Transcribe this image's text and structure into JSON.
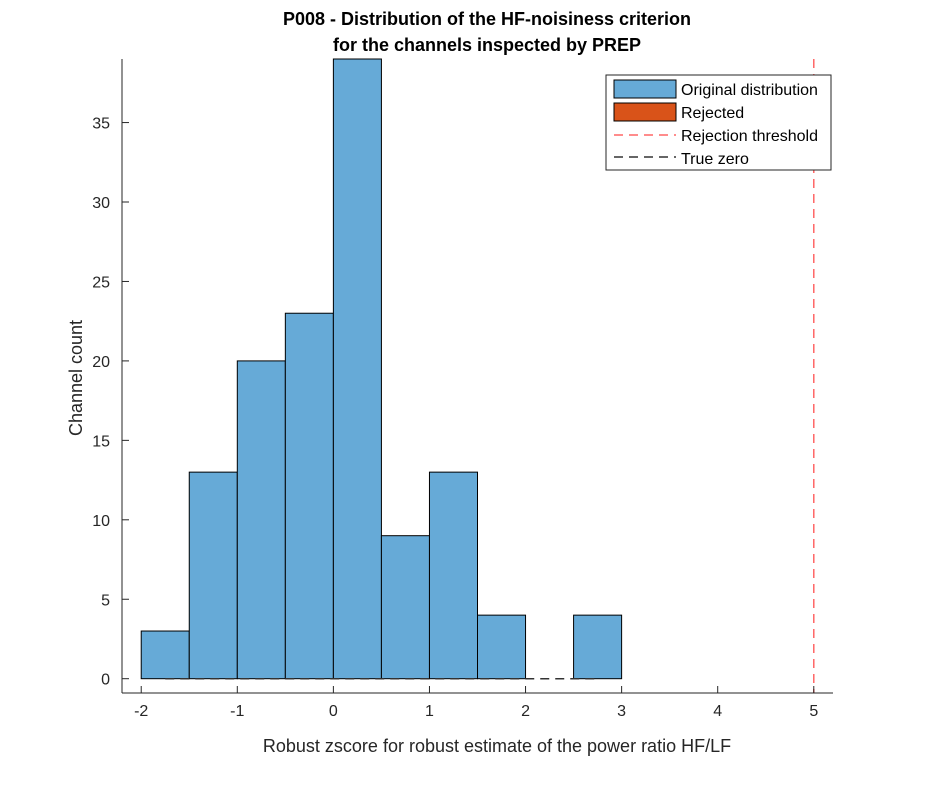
{
  "chart_data": {
    "type": "bar",
    "title": [
      "P008 - Distribution of the HF-noisiness criterion",
      "for the channels inspected by PREP"
    ],
    "xlabel": "Robust zscore for robust estimate of the power ratio HF/LF",
    "ylabel": "Channel count",
    "xlim": [
      -2.2,
      5.2
    ],
    "ylim": [
      -0.9,
      39
    ],
    "xticks": [
      -2,
      -1,
      0,
      1,
      2,
      3,
      4,
      5
    ],
    "yticks": [
      0,
      5,
      10,
      15,
      20,
      25,
      30,
      35
    ],
    "bins": [
      {
        "x0": -2.0,
        "x1": -1.5,
        "count": 3
      },
      {
        "x0": -1.5,
        "x1": -1.0,
        "count": 13
      },
      {
        "x0": -1.0,
        "x1": -0.5,
        "count": 20
      },
      {
        "x0": -0.5,
        "x1": 0.0,
        "count": 23
      },
      {
        "x0": 0.0,
        "x1": 0.5,
        "count": 39
      },
      {
        "x0": 0.5,
        "x1": 1.0,
        "count": 9
      },
      {
        "x0": 1.0,
        "x1": 1.5,
        "count": 13
      },
      {
        "x0": 1.5,
        "x1": 2.0,
        "count": 4
      },
      {
        "x0": 2.0,
        "x1": 2.5,
        "count": 0
      },
      {
        "x0": 2.5,
        "x1": 3.0,
        "count": 4
      }
    ],
    "rejection_threshold": 5,
    "true_zero_line": {
      "y": 0,
      "x_from": -1.75,
      "x_to": 2.75
    },
    "legend": {
      "position": "top-right",
      "entries": [
        {
          "label": "Original distribution",
          "kind": "patch",
          "color": "#66aad7"
        },
        {
          "label": "Rejected",
          "kind": "patch",
          "color": "#d95319"
        },
        {
          "label": "Rejection threshold",
          "kind": "dashed-line",
          "color": "#ff6666"
        },
        {
          "label": "True zero",
          "kind": "dashed-line",
          "color": "#333333"
        }
      ]
    },
    "colors": {
      "bar_fill": "#66aad7",
      "bar_edge": "#000000",
      "axis": "#262626",
      "threshold": "#ff6666",
      "true_zero": "#333333"
    }
  }
}
